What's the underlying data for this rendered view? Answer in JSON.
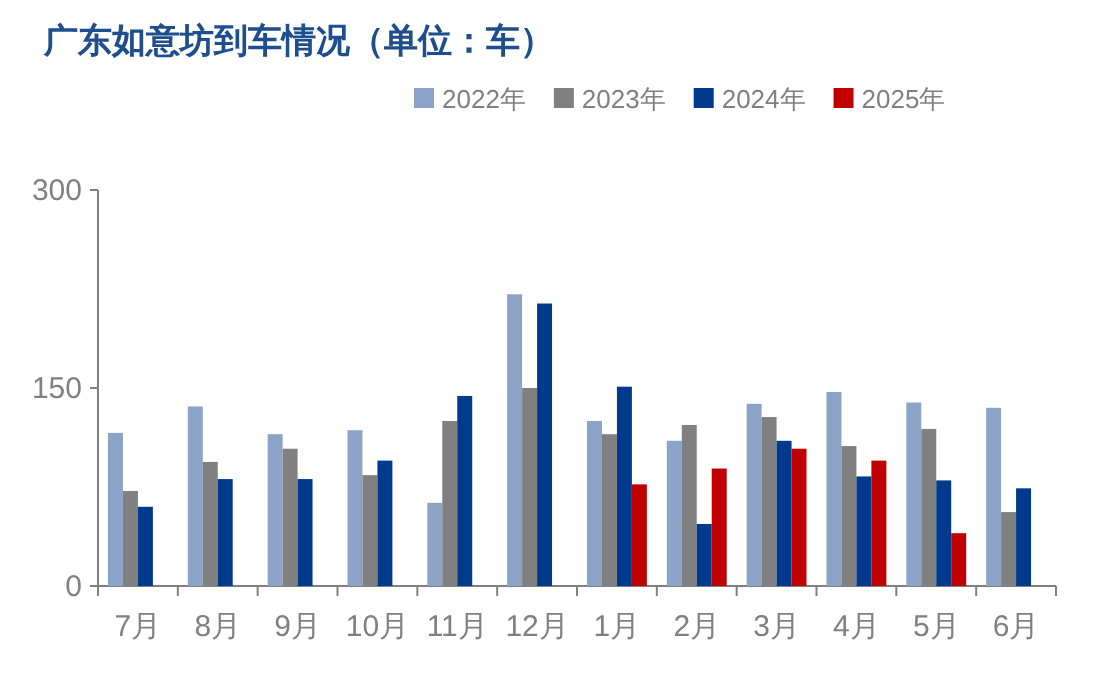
{
  "chart_data": {
    "type": "bar",
    "title": "广东如意坊到车情况（单位：车）",
    "categories": [
      "7月",
      "8月",
      "9月",
      "10月",
      "11月",
      "12月",
      "1月",
      "2月",
      "3月",
      "4月",
      "5月",
      "6月"
    ],
    "series": [
      {
        "name": "2022年",
        "color": "#8aa3c7",
        "values": [
          116,
          136,
          115,
          118,
          63,
          221,
          125,
          110,
          138,
          147,
          139,
          135
        ]
      },
      {
        "name": "2023年",
        "color": "#808080",
        "values": [
          72,
          94,
          104,
          84,
          125,
          150,
          115,
          122,
          128,
          106,
          119,
          56
        ]
      },
      {
        "name": "2024年",
        "color": "#003a8c",
        "values": [
          60,
          81,
          81,
          95,
          144,
          214,
          151,
          47,
          110,
          83,
          80,
          74
        ]
      },
      {
        "name": "2025年",
        "color": "#c00000",
        "values": [
          null,
          null,
          null,
          null,
          null,
          null,
          77,
          89,
          104,
          95,
          40,
          null
        ]
      }
    ],
    "ylim": [
      0,
      300
    ],
    "yticks": [
      0,
      150,
      300
    ],
    "legend": "top right",
    "grid": false
  }
}
